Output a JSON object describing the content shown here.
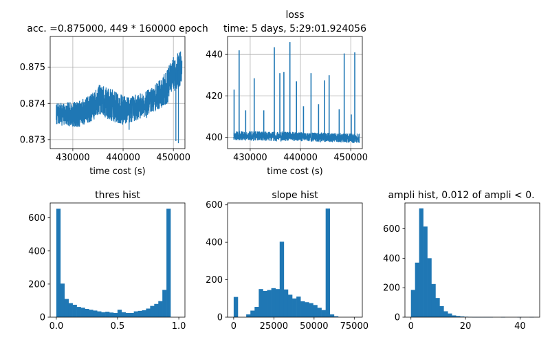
{
  "figure": {
    "panels": [
      {
        "id": "acc",
        "title_lines": [
          "acc. =0.875000, 449 * 160000 epoch"
        ]
      },
      {
        "id": "loss",
        "title_lines": [
          "loss",
          "time: 5 days, 5:29:01.924056"
        ]
      },
      {
        "id": "thres",
        "title_lines": [
          "thres hist"
        ]
      },
      {
        "id": "slope",
        "title_lines": [
          "slope hist"
        ]
      },
      {
        "id": "ampli",
        "title_lines": [
          "ampli hist, 0.012 of ampli < 0."
        ]
      }
    ]
  },
  "colors": {
    "series": "#1f77b4",
    "grid": "#b0b0b0",
    "axis": "#000000"
  },
  "chart_data": [
    {
      "id": "acc",
      "type": "line",
      "title": "acc. =0.875000, 449 * 160000 epoch",
      "xlabel": "time cost (s)",
      "ylabel": "",
      "xlim": [
        425500,
        452300
      ],
      "ylim": [
        0.87275,
        0.87585
      ],
      "xticks": [
        430000,
        440000,
        450000
      ],
      "xtick_labels": [
        "430000",
        "440000",
        "450000"
      ],
      "yticks": [
        0.873,
        0.874,
        0.875
      ],
      "ytick_labels": [
        "0.873",
        "0.874",
        "0.875"
      ],
      "grid": true,
      "x_range": [
        426700,
        451700
      ],
      "trend": [
        [
          426700,
          0.8737
        ],
        [
          431000,
          0.8737
        ],
        [
          434000,
          0.8739
        ],
        [
          435200,
          0.8741
        ],
        [
          437000,
          0.874
        ],
        [
          438500,
          0.8739
        ],
        [
          440000,
          0.8738
        ],
        [
          443000,
          0.8739
        ],
        [
          446000,
          0.8741
        ],
        [
          448500,
          0.8744
        ],
        [
          450000,
          0.8748
        ],
        [
          451700,
          0.875
        ]
      ],
      "band": [
        [
          426700,
          0.0003
        ],
        [
          434000,
          0.0004
        ],
        [
          438000,
          0.00045
        ],
        [
          443000,
          0.00035
        ],
        [
          446000,
          0.00035
        ],
        [
          449000,
          0.0005
        ],
        [
          451700,
          0.0005
        ]
      ],
      "spikes": [
        [
          436300,
          0.87366
        ],
        [
          441200,
          0.87327
        ],
        [
          444700,
          0.8736
        ],
        [
          450500,
          0.87296
        ],
        [
          451000,
          0.8729
        ]
      ]
    },
    {
      "id": "loss",
      "type": "line",
      "title": "loss",
      "subtitle": "time: 5 days, 5:29:01.924056",
      "xlabel": "time cost (s)",
      "ylabel": "",
      "xlim": [
        425500,
        452300
      ],
      "ylim": [
        394.5,
        448.7
      ],
      "xticks": [
        430000,
        440000,
        450000
      ],
      "xtick_labels": [
        "430000",
        "440000",
        "450000"
      ],
      "yticks": [
        400,
        420,
        440
      ],
      "ytick_labels": [
        "400",
        "420",
        "440"
      ],
      "grid": true,
      "x_range": [
        426700,
        451700
      ],
      "base": [
        [
          426700,
          398.5
        ],
        [
          440000,
          398.0
        ],
        [
          451700,
          397.2
        ]
      ],
      "noise": 4.5,
      "spikes": [
        [
          426800,
          423
        ],
        [
          427800,
          442
        ],
        [
          429100,
          413
        ],
        [
          430800,
          428.5
        ],
        [
          432700,
          413
        ],
        [
          434800,
          443.5
        ],
        [
          435900,
          431
        ],
        [
          436700,
          431.5
        ],
        [
          437900,
          446
        ],
        [
          439200,
          427
        ],
        [
          440600,
          415
        ],
        [
          442100,
          431
        ],
        [
          443600,
          416
        ],
        [
          444800,
          427.5
        ],
        [
          445700,
          430
        ],
        [
          447700,
          413.5
        ],
        [
          448700,
          440.5
        ],
        [
          450100,
          411
        ],
        [
          450800,
          441
        ]
      ]
    },
    {
      "id": "thres",
      "type": "bar",
      "title": "thres hist",
      "xlabel": "",
      "ylabel": "",
      "bin_start": 0.0,
      "bin_width": 0.0333,
      "values": [
        655,
        203,
        110,
        85,
        75,
        62,
        57,
        50,
        45,
        40,
        35,
        30,
        33,
        28,
        25,
        45,
        30,
        25,
        25,
        35,
        38,
        42,
        52,
        68,
        80,
        97,
        165,
        655
      ],
      "xlim": [
        -0.05,
        1.05
      ],
      "ylim": [
        0,
        690
      ],
      "xticks": [
        0.0,
        0.5,
        1.0
      ],
      "xtick_labels": [
        "0.0",
        "0.5",
        "1.0"
      ],
      "yticks": [
        0,
        200,
        400,
        600
      ],
      "ytick_labels": [
        "0",
        "200",
        "400",
        "600"
      ],
      "grid": false
    },
    {
      "id": "slope",
      "type": "bar",
      "title": "slope hist",
      "xlabel": "",
      "ylabel": "",
      "bin_start": 0,
      "bin_width": 2600,
      "values": [
        108,
        0,
        0,
        15,
        35,
        55,
        150,
        140,
        145,
        155,
        150,
        403,
        148,
        120,
        100,
        110,
        85,
        80,
        75,
        65,
        50,
        38,
        580,
        15,
        5
      ],
      "xlim": [
        -3800,
        80000
      ],
      "ylim": [
        0,
        610
      ],
      "xticks": [
        0,
        25000,
        50000,
        75000
      ],
      "xtick_labels": [
        "0",
        "25000",
        "50000",
        "75000"
      ],
      "yticks": [
        0,
        200,
        400,
        600
      ],
      "ytick_labels": [
        "0",
        "200",
        "400",
        "600"
      ],
      "grid": false
    },
    {
      "id": "ampli",
      "type": "bar",
      "title": "ampli hist, 0.012 of ampli < 0.",
      "xlabel": "",
      "ylabel": "",
      "bin_start": 0,
      "bin_width": 1.5,
      "values": [
        185,
        370,
        738,
        615,
        400,
        225,
        130,
        75,
        40,
        25,
        12,
        8,
        5,
        3,
        2,
        1,
        1,
        1,
        1,
        1,
        0,
        0,
        1,
        0,
        0,
        0,
        1,
        0,
        0,
        1
      ],
      "xlim": [
        -2.2,
        47.2
      ],
      "ylim": [
        0,
        775
      ],
      "xticks": [
        0,
        20,
        40
      ],
      "xtick_labels": [
        "0",
        "20",
        "40"
      ],
      "yticks": [
        0,
        200,
        400,
        600
      ],
      "ytick_labels": [
        "0",
        "200",
        "400",
        "600"
      ],
      "grid": false
    }
  ]
}
